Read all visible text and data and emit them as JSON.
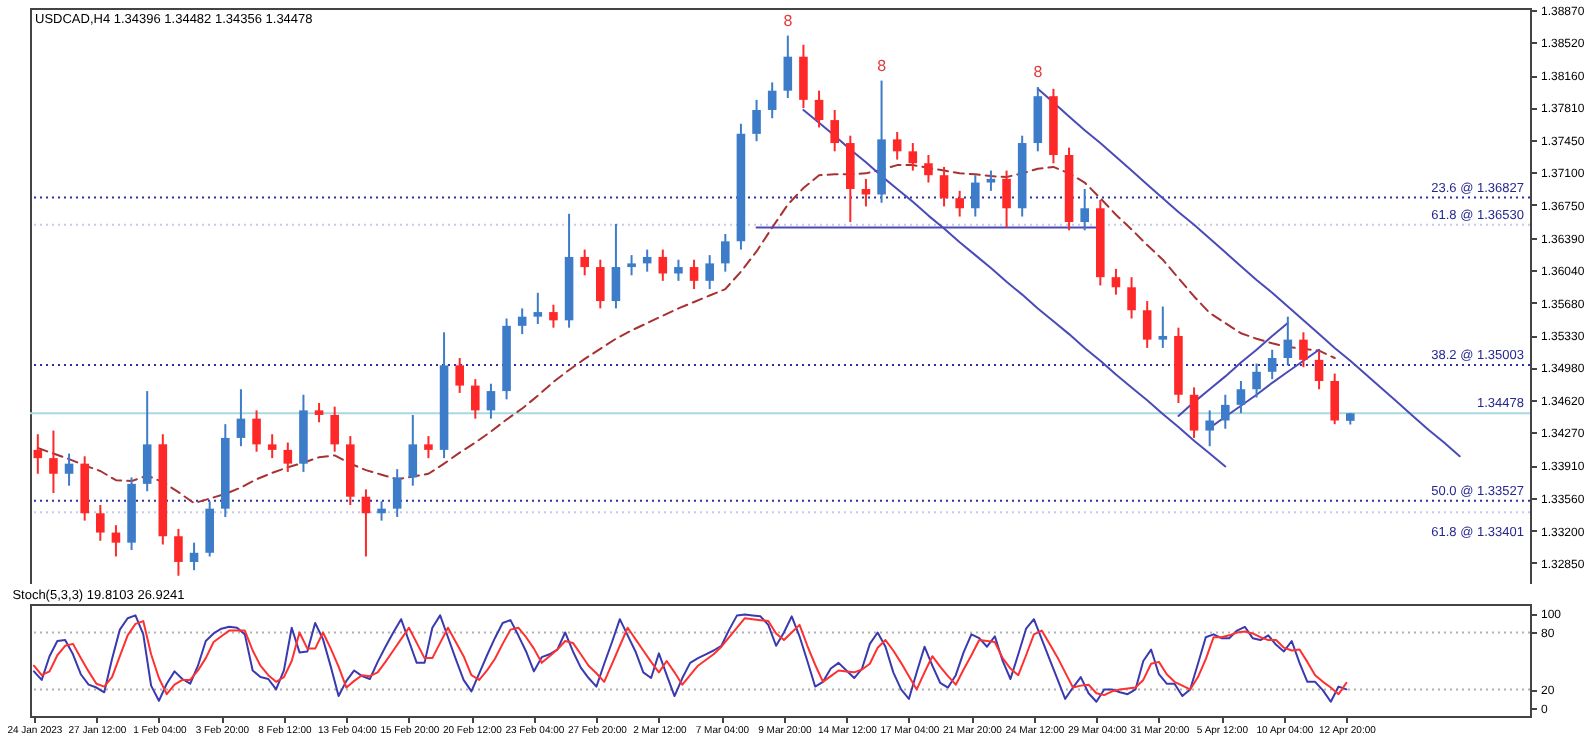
{
  "chart_data": [
    {
      "type": "candlestick",
      "title": "USDCAD,H4 1.34396 1.34482 1.34356 1.34478",
      "tick_labels": "y",
      "categories": [
        null,
        null,
        null,
        null,
        null,
        null,
        null,
        null,
        null,
        null,
        null,
        null,
        null,
        null,
        null,
        null,
        null,
        null,
        null,
        null,
        null,
        null,
        null,
        null,
        null,
        null,
        null,
        null,
        null,
        null,
        null,
        null,
        null,
        null,
        null,
        null,
        null,
        null,
        null,
        null,
        null,
        null,
        null,
        null,
        null,
        null,
        null,
        null,
        null,
        null,
        null,
        null,
        null,
        null,
        null,
        null,
        null,
        null,
        null,
        null,
        null,
        null,
        null,
        null,
        null,
        null,
        null,
        null,
        null,
        null,
        null,
        null,
        null,
        null,
        null,
        null,
        null,
        null,
        null,
        null,
        null,
        null,
        null,
        null,
        null,
        null,
        null,
        null,
        null,
        null,
        null,
        null,
        null,
        null,
        null,
        null
      ],
      "ylim": [
        1.3262,
        1.3889
      ],
      "yticks": [
        {
          "value": 1.3887,
          "label": "1.38870"
        },
        {
          "value": 1.3852,
          "label": "1.38520"
        },
        {
          "value": 1.3816,
          "label": "1.38160"
        },
        {
          "value": 1.3781,
          "label": "1.37810"
        },
        {
          "value": 1.3745,
          "label": "1.37450"
        },
        {
          "value": 1.371,
          "label": "1.37100"
        },
        {
          "value": 1.3675,
          "label": "1.36750"
        },
        {
          "value": 1.3639,
          "label": "1.36390"
        },
        {
          "value": 1.3604,
          "label": "1.36040"
        },
        {
          "value": 1.3568,
          "label": "1.35680"
        },
        {
          "value": 1.3533,
          "label": "1.35330"
        },
        {
          "value": 1.3498,
          "label": "1.34980"
        },
        {
          "value": 1.3462,
          "label": "1.34620"
        },
        {
          "value": 1.3427,
          "label": "1.34270"
        },
        {
          "value": 1.3391,
          "label": "1.33910"
        },
        {
          "value": 1.3356,
          "label": "1.33560"
        },
        {
          "value": 1.332,
          "label": "1.33200"
        },
        {
          "value": 1.3285,
          "label": "1.32850"
        }
      ],
      "ohlc": [
        [
          1.3408,
          1.3425,
          1.3382,
          1.3399
        ],
        [
          1.3399,
          1.3429,
          1.3361,
          1.3382
        ],
        [
          1.3382,
          1.3404,
          1.3369,
          1.3393
        ],
        [
          1.3393,
          1.3401,
          1.3331,
          1.3339
        ],
        [
          1.3339,
          1.3348,
          1.3309,
          1.3318
        ],
        [
          1.3318,
          1.3326,
          1.3292,
          1.3307
        ],
        [
          1.3307,
          1.3378,
          1.3299,
          1.3371
        ],
        [
          1.3371,
          1.3472,
          1.3363,
          1.3414
        ],
        [
          1.3414,
          1.3425,
          1.3305,
          1.3314
        ],
        [
          1.3314,
          1.3322,
          1.3271,
          1.3286
        ],
        [
          1.3286,
          1.3307,
          1.3277,
          1.3296
        ],
        [
          1.3296,
          1.3352,
          1.3292,
          1.3344
        ],
        [
          1.3344,
          1.3436,
          1.3335,
          1.3421
        ],
        [
          1.3421,
          1.3474,
          1.3412,
          1.3442
        ],
        [
          1.3442,
          1.3451,
          1.3406,
          1.3414
        ],
        [
          1.3414,
          1.3425,
          1.3399,
          1.3408
        ],
        [
          1.3408,
          1.3416,
          1.3384,
          1.3393
        ],
        [
          1.3393,
          1.3468,
          1.3384,
          1.3451
        ],
        [
          1.3451,
          1.3459,
          1.3438,
          1.3446
        ],
        [
          1.3446,
          1.3455,
          1.3406,
          1.3414
        ],
        [
          1.3414,
          1.3423,
          1.3348,
          1.3357
        ],
        [
          1.3357,
          1.3365,
          1.3292,
          1.3339
        ],
        [
          1.3339,
          1.3352,
          1.3331,
          1.3344
        ],
        [
          1.3344,
          1.3387,
          1.3335,
          1.3378
        ],
        [
          1.3378,
          1.3446,
          1.3369,
          1.3414
        ],
        [
          1.3414,
          1.3423,
          1.3399,
          1.3408
        ],
        [
          1.3408,
          1.3536,
          1.3399,
          1.35
        ],
        [
          1.35,
          1.3508,
          1.347,
          1.3478
        ],
        [
          1.3478,
          1.3485,
          1.3442,
          1.3451
        ],
        [
          1.3451,
          1.348,
          1.3442,
          1.3472
        ],
        [
          1.3472,
          1.3551,
          1.3463,
          1.3543
        ],
        [
          1.3543,
          1.3562,
          1.3534,
          1.3553
        ],
        [
          1.3553,
          1.3579,
          1.3545,
          1.3558
        ],
        [
          1.3558,
          1.3566,
          1.3541,
          1.3549
        ],
        [
          1.3549,
          1.3665,
          1.3541,
          1.3618
        ],
        [
          1.3618,
          1.3626,
          1.3598,
          1.3607
        ],
        [
          1.3607,
          1.3615,
          1.3562,
          1.357
        ],
        [
          1.357,
          1.3654,
          1.3562,
          1.3607
        ],
        [
          1.3607,
          1.362,
          1.3598,
          1.3611
        ],
        [
          1.3611,
          1.3626,
          1.3602,
          1.3618
        ],
        [
          1.3618,
          1.3626,
          1.3592,
          1.36
        ],
        [
          1.36,
          1.3615,
          1.3592,
          1.3607
        ],
        [
          1.3607,
          1.3615,
          1.3583,
          1.3592
        ],
        [
          1.3592,
          1.362,
          1.3583,
          1.3611
        ],
        [
          1.3611,
          1.3643,
          1.3602,
          1.3635
        ],
        [
          1.3635,
          1.3763,
          1.3626,
          1.3752
        ],
        [
          1.3752,
          1.3789,
          1.3744,
          1.3778
        ],
        [
          1.3778,
          1.3808,
          1.3769,
          1.3799
        ],
        [
          1.3799,
          1.3859,
          1.3791,
          1.3836
        ],
        [
          1.3836,
          1.3849,
          1.378,
          1.3789
        ],
        [
          1.3789,
          1.3799,
          1.3759,
          1.3767
        ],
        [
          1.3767,
          1.3778,
          1.3733,
          1.3742
        ],
        [
          1.3742,
          1.375,
          1.3656,
          1.3692
        ],
        [
          1.3692,
          1.3703,
          1.3673,
          1.3686
        ],
        [
          1.3686,
          1.381,
          1.3677,
          1.3746
        ],
        [
          1.3746,
          1.3754,
          1.3724,
          1.3733
        ],
        [
          1.3733,
          1.3742,
          1.3712,
          1.372
        ],
        [
          1.372,
          1.3729,
          1.3699,
          1.3707
        ],
        [
          1.3707,
          1.3716,
          1.3673,
          1.3682
        ],
        [
          1.3682,
          1.369,
          1.3662,
          1.3671
        ],
        [
          1.3671,
          1.3707,
          1.3662,
          1.3699
        ],
        [
          1.3699,
          1.3712,
          1.369,
          1.3703
        ],
        [
          1.3703,
          1.3712,
          1.365,
          1.3671
        ],
        [
          1.3671,
          1.375,
          1.3662,
          1.3742
        ],
        [
          1.3742,
          1.3803,
          1.3733,
          1.3793
        ],
        [
          1.3793,
          1.3801,
          1.372,
          1.3729
        ],
        [
          1.3729,
          1.3737,
          1.3647,
          1.3656
        ],
        [
          1.3656,
          1.3692,
          1.3647,
          1.3671
        ],
        [
          1.3671,
          1.368,
          1.3587,
          1.3596
        ],
        [
          1.3596,
          1.3605,
          1.3577,
          1.3585
        ],
        [
          1.3585,
          1.3596,
          1.3551,
          1.356
        ],
        [
          1.356,
          1.357,
          1.3519,
          1.3528
        ],
        [
          1.3528,
          1.3564,
          1.3519,
          1.3532
        ],
        [
          1.3532,
          1.3541,
          1.3459,
          1.3468
        ],
        [
          1.3468,
          1.3476,
          1.3421,
          1.3429
        ],
        [
          1.3429,
          1.3451,
          1.3412,
          1.344
        ],
        [
          1.344,
          1.3468,
          1.3431,
          1.3457
        ],
        [
          1.3457,
          1.3483,
          1.3448,
          1.3474
        ],
        [
          1.3474,
          1.3502,
          1.3465,
          1.3493
        ],
        [
          1.3493,
          1.3517,
          1.3485,
          1.3508
        ],
        [
          1.3508,
          1.3553,
          1.35,
          1.3528
        ],
        [
          1.3528,
          1.3536,
          1.3498,
          1.3506
        ],
        [
          1.3506,
          1.3515,
          1.3474,
          1.3483
        ],
        [
          1.3483,
          1.3491,
          1.3436,
          1.344
        ],
        [
          1.34396,
          1.34482,
          1.34356,
          1.34478
        ],
        null,
        null,
        null,
        null,
        null,
        null,
        null,
        null,
        null,
        null,
        null
      ],
      "colors": [
        "#ff2828",
        "#ff2828",
        "#3d7cc9",
        "#ff2828",
        "#ff2828",
        "#ff2828",
        "#3d7cc9",
        "#3d7cc9",
        "#ff2828",
        "#ff2828",
        "#3d7cc9",
        "#3d7cc9",
        "#3d7cc9",
        "#3d7cc9",
        "#ff2828",
        "#ff2828",
        "#ff2828",
        "#3d7cc9",
        "#ff2828",
        "#ff2828",
        "#ff2828",
        "#ff2828",
        "#3d7cc9",
        "#3d7cc9",
        "#3d7cc9",
        "#ff2828",
        "#3d7cc9",
        "#ff2828",
        "#ff2828",
        "#3d7cc9",
        "#3d7cc9",
        "#3d7cc9",
        "#3d7cc9",
        "#ff2828",
        "#3d7cc9",
        "#ff2828",
        "#ff2828",
        "#3d7cc9",
        "#3d7cc9",
        "#3d7cc9",
        "#ff2828",
        "#3d7cc9",
        "#ff2828",
        "#3d7cc9",
        "#3d7cc9",
        "#3d7cc9",
        "#3d7cc9",
        "#3d7cc9",
        "#3d7cc9",
        "#ff2828",
        "#ff2828",
        "#ff2828",
        "#ff2828",
        "#ff2828",
        "#3d7cc9",
        "#ff2828",
        "#ff2828",
        "#ff2828",
        "#ff2828",
        "#ff2828",
        "#3d7cc9",
        "#3d7cc9",
        "#ff2828",
        "#3d7cc9",
        "#3d7cc9",
        "#ff2828",
        "#ff2828",
        "#3d7cc9",
        "#ff2828",
        "#ff2828",
        "#ff2828",
        "#ff2828",
        "#3d7cc9",
        "#ff2828",
        "#ff2828",
        "#3d7cc9",
        "#3d7cc9",
        "#3d7cc9",
        "#3d7cc9",
        "#3d7cc9",
        "#3d7cc9",
        "#ff2828",
        "#ff2828",
        "#ff2828",
        "#3d7cc9",
        null,
        null,
        null,
        null,
        null,
        null,
        null,
        null,
        null,
        null,
        null
      ],
      "series": [
        {
          "type": "line",
          "color": "#a83232",
          "line_style": "dashed",
          "values": [
            1.341,
            1.3404,
            1.3398,
            1.3391,
            1.3385,
            1.3375,
            1.3374,
            1.338,
            1.3373,
            1.3362,
            1.335,
            1.3355,
            1.336,
            1.3367,
            1.3376,
            1.3383,
            1.3389,
            1.3394,
            1.34,
            1.3402,
            1.3393,
            1.3386,
            1.3381,
            1.3376,
            1.3379,
            1.3382,
            1.3393,
            1.3405,
            1.3416,
            1.3428,
            1.3441,
            1.3453,
            1.3467,
            1.3482,
            1.3495,
            1.3507,
            1.3518,
            1.3529,
            1.3538,
            1.3546,
            1.3554,
            1.3562,
            1.3569,
            1.3576,
            1.3583,
            1.3602,
            1.3624,
            1.365,
            1.3675,
            1.3693,
            1.3707,
            1.3708,
            1.3708,
            1.3709,
            1.3713,
            1.3718,
            1.3718,
            1.3715,
            1.3712,
            1.3709,
            1.3708,
            1.3706,
            1.3705,
            1.3709,
            1.3714,
            1.3716,
            1.3709,
            1.3699,
            1.3682,
            1.3664,
            1.3648,
            1.3631,
            1.3615,
            1.3595,
            1.3575,
            1.3557,
            1.3546,
            1.3535,
            1.3529,
            1.3524,
            1.352,
            1.3518,
            1.3516,
            1.3508,
            null,
            null,
            null,
            null,
            null,
            null,
            null,
            null,
            null,
            null,
            null,
            null
          ]
        },
        {
          "type": "line",
          "color": "#4a4ab8",
          "line_style": "solid",
          "values": [
            null,
            null,
            null,
            null,
            null,
            null,
            null,
            null,
            null,
            null,
            null,
            null,
            null,
            null,
            null,
            null,
            null,
            null,
            null,
            null,
            null,
            null,
            null,
            null,
            null,
            null,
            null,
            null,
            null,
            null,
            null,
            null,
            null,
            null,
            null,
            null,
            null,
            null,
            null,
            null,
            null,
            null,
            null,
            null,
            null,
            null,
            null,
            null,
            null,
            1.3778,
            1.3764,
            1.375,
            1.3735,
            1.3721,
            1.3706,
            1.3692,
            1.3678,
            1.3663,
            1.3649,
            1.3634,
            1.362,
            1.3606,
            1.3591,
            1.3577,
            1.3562,
            1.3548,
            1.3534,
            1.3519,
            1.3505,
            1.349,
            1.3476,
            1.3462,
            1.3447,
            1.3433,
            1.3418,
            1.3404,
            1.339,
            null,
            null,
            null,
            null,
            null,
            null,
            null,
            null,
            null,
            null,
            null,
            null,
            null,
            null,
            null,
            null,
            null,
            null,
            null
          ]
        },
        {
          "type": "line",
          "color": "#4a4ab8",
          "line_style": "solid",
          "values": [
            null,
            null,
            null,
            null,
            null,
            null,
            null,
            null,
            null,
            null,
            null,
            null,
            null,
            null,
            null,
            null,
            null,
            null,
            null,
            null,
            null,
            null,
            null,
            null,
            null,
            null,
            null,
            null,
            null,
            null,
            null,
            null,
            null,
            null,
            null,
            null,
            null,
            null,
            null,
            null,
            null,
            null,
            null,
            null,
            null,
            null,
            null,
            null,
            null,
            null,
            null,
            null,
            null,
            null,
            null,
            null,
            null,
            null,
            null,
            null,
            null,
            null,
            null,
            null,
            1.3801,
            1.3786,
            1.3771,
            1.3756,
            1.3742,
            1.3727,
            1.3712,
            1.3697,
            1.3682,
            1.3667,
            1.3653,
            1.3638,
            1.3623,
            1.3608,
            1.3593,
            1.3579,
            1.3564,
            1.3549,
            1.3534,
            1.3519,
            1.3505,
            1.349,
            1.3475,
            1.346,
            1.3445,
            1.343,
            1.3416,
            1.3401,
            null,
            null,
            null,
            null
          ]
        },
        {
          "type": "line",
          "color": "#4a4ab8",
          "line_style": "solid",
          "values": [
            null,
            null,
            null,
            null,
            null,
            null,
            null,
            null,
            null,
            null,
            null,
            null,
            null,
            null,
            null,
            null,
            null,
            null,
            null,
            null,
            null,
            null,
            null,
            null,
            null,
            null,
            null,
            null,
            null,
            null,
            null,
            null,
            null,
            null,
            null,
            null,
            null,
            null,
            null,
            null,
            null,
            null,
            null,
            null,
            null,
            null,
            1.365,
            1.365,
            1.365,
            1.365,
            1.365,
            1.365,
            1.365,
            1.365,
            1.365,
            1.365,
            1.365,
            1.365,
            1.365,
            1.365,
            1.365,
            1.365,
            1.365,
            1.365,
            1.365,
            1.365,
            1.365,
            1.365,
            1.365,
            null,
            null,
            null,
            null,
            null,
            null,
            null,
            null,
            null,
            null,
            null,
            null,
            null,
            null,
            null,
            null,
            null,
            null,
            null,
            null,
            null,
            null,
            null,
            null,
            null,
            null,
            null
          ]
        },
        {
          "type": "line",
          "color": "#4a4ab8",
          "line_style": "solid",
          "values": [
            null,
            null,
            null,
            null,
            null,
            null,
            null,
            null,
            null,
            null,
            null,
            null,
            null,
            null,
            null,
            null,
            null,
            null,
            null,
            null,
            null,
            null,
            null,
            null,
            null,
            null,
            null,
            null,
            null,
            null,
            null,
            null,
            null,
            null,
            null,
            null,
            null,
            null,
            null,
            null,
            null,
            null,
            null,
            null,
            null,
            null,
            null,
            null,
            null,
            null,
            null,
            null,
            null,
            null,
            null,
            null,
            null,
            null,
            null,
            null,
            null,
            null,
            null,
            null,
            null,
            null,
            null,
            null,
            null,
            null,
            null,
            null,
            null,
            null,
            null,
            1.3432,
            1.3444,
            1.3456,
            1.3468,
            1.3481,
            1.3493,
            1.3505,
            1.3517,
            null,
            null,
            null,
            null,
            null,
            null,
            null,
            null,
            null,
            null,
            null,
            null,
            null
          ]
        },
        {
          "type": "line",
          "color": "#4a4ab8",
          "line_style": "solid",
          "values": [
            null,
            null,
            null,
            null,
            null,
            null,
            null,
            null,
            null,
            null,
            null,
            null,
            null,
            null,
            null,
            null,
            null,
            null,
            null,
            null,
            null,
            null,
            null,
            null,
            null,
            null,
            null,
            null,
            null,
            null,
            null,
            null,
            null,
            null,
            null,
            null,
            null,
            null,
            null,
            null,
            null,
            null,
            null,
            null,
            null,
            null,
            null,
            null,
            null,
            null,
            null,
            null,
            null,
            null,
            null,
            null,
            null,
            null,
            null,
            null,
            null,
            null,
            null,
            null,
            null,
            null,
            null,
            null,
            null,
            null,
            null,
            null,
            null,
            1.3445,
            1.346,
            1.3474,
            1.3488,
            1.3503,
            1.3517,
            1.3532,
            1.3546,
            null,
            null,
            null,
            null,
            null,
            null,
            null,
            null,
            null,
            null,
            null,
            null,
            null,
            null,
            null
          ]
        }
      ],
      "ref_lines": [
        {
          "axis": "y",
          "value": 1.36827,
          "label": "23.6 @ 1.36827",
          "color": "#3030a0",
          "line_style": "dotted"
        },
        {
          "axis": "y",
          "value": 1.3653,
          "label": "61.8 @ 1.36530",
          "color": "#c8c8e8",
          "line_style": "dotted"
        },
        {
          "axis": "y",
          "value": 1.35003,
          "label": "38.2 @ 1.35003",
          "color": "#3030a0",
          "line_style": "dotted"
        },
        {
          "axis": "y",
          "value": 1.34478,
          "label": "1.34478",
          "color": "#a8d8e0",
          "line_style": "solid"
        },
        {
          "axis": "y",
          "value": 1.33527,
          "label": "50.0 @ 1.33527",
          "color": "#3030a0",
          "line_style": "dotted"
        },
        {
          "axis": "y",
          "value": 1.33401,
          "label": "61.8 @ 1.33401",
          "color": "#c8c8e8",
          "line_style": "dotted"
        }
      ],
      "annotations": [
        {
          "text": "8",
          "y": 1.3859
        },
        {
          "text": "8",
          "y": 1.381
        },
        {
          "text": "8",
          "y": 1.3803
        }
      ]
    },
    {
      "type": "line",
      "title": "Stoch(5,3,3) 19.8103 26.9241",
      "categories": [
        "24 Jan 2023",
        null,
        null,
        null,
        null,
        null,
        null,
        null,
        "27 Jan 12:00",
        null,
        null,
        null,
        null,
        null,
        null,
        null,
        "1 Feb 04:00",
        null,
        null,
        null,
        null,
        null,
        null,
        null,
        "3 Feb 20:00",
        null,
        null,
        null,
        null,
        null,
        null,
        null,
        "8 Feb 12:00",
        null,
        null,
        null,
        null,
        null,
        null,
        null,
        "13 Feb 04:00",
        null,
        null,
        null,
        null,
        null,
        null,
        null,
        "15 Feb 20:00",
        null,
        null,
        null,
        null,
        null,
        null,
        null,
        "20 Feb 12:00",
        null,
        null,
        null,
        null,
        null,
        null,
        null,
        "23 Feb 04:00",
        null,
        null,
        null,
        null,
        null,
        null,
        null,
        "27 Feb 20:00",
        null,
        null,
        null,
        null,
        null,
        null,
        null,
        "2 Mar 12:00",
        null,
        null,
        null,
        null,
        null,
        null,
        null,
        "7 Mar 04:00",
        null,
        null,
        null,
        null,
        null,
        null,
        null,
        "9 Mar 20:00",
        null,
        null,
        null,
        null,
        null,
        null,
        null,
        "14 Mar 12:00",
        null,
        null,
        null,
        null,
        null,
        null,
        null,
        "17 Mar 04:00",
        null,
        null,
        null,
        null,
        null,
        null,
        null,
        "21 Mar 20:00",
        null,
        null,
        null,
        null,
        null,
        null,
        null,
        "24 Mar 12:00",
        null,
        null,
        null,
        null,
        null,
        null,
        null,
        "29 Mar 04:00",
        null,
        null,
        null,
        null,
        null,
        null,
        null,
        "31 Mar 20:00",
        null,
        null,
        null,
        null,
        null,
        null,
        null,
        "5 Apr 12:00",
        null,
        null,
        null,
        null,
        null,
        null,
        null,
        "10 Apr 04:00",
        null,
        null,
        null,
        null,
        null,
        null,
        null,
        "12 Apr 20:00",
        null,
        null,
        null,
        null,
        null,
        null,
        null,
        null,
        null,
        null,
        null,
        null,
        null,
        null,
        null,
        null,
        null,
        null,
        null,
        null,
        null,
        null,
        null
      ],
      "ylim": [
        -8,
        110
      ],
      "yticks": [
        0,
        20,
        80,
        100
      ],
      "series": [
        {
          "type": "line",
          "color": "#3a3ab0",
          "values": [
            39,
            30,
            55,
            71,
            72,
            57,
            36,
            25,
            22,
            17,
            52,
            83,
            95,
            98,
            78,
            24,
            8,
            26,
            39,
            31,
            26,
            45,
            71,
            79,
            84,
            86,
            85,
            78,
            40,
            33,
            31,
            20,
            40,
            85,
            59,
            60,
            90,
            73,
            44,
            13,
            29,
            40,
            34,
            31,
            49,
            65,
            80,
            94,
            71,
            48,
            48,
            85,
            98,
            75,
            52,
            30,
            18,
            37,
            56,
            74,
            90,
            93,
            77,
            60,
            39,
            54,
            57,
            62,
            80,
            60,
            43,
            32,
            23,
            47,
            70,
            94,
            77,
            60,
            38,
            32,
            58,
            35,
            13,
            32,
            48,
            53,
            57,
            61,
            66,
            83,
            98,
            99,
            98,
            97,
            88,
            66,
            80,
            97,
            76,
            50,
            23,
            28,
            42,
            48,
            40,
            32,
            42,
            68,
            80,
            65,
            38,
            20,
            10,
            38,
            65,
            45,
            27,
            22,
            35,
            59,
            78,
            74,
            65,
            76,
            50,
            31,
            57,
            84,
            94,
            73,
            52,
            31,
            10,
            22,
            33,
            16,
            7,
            20,
            20,
            17,
            15,
            20,
            50,
            62,
            36,
            26,
            26,
            13,
            20,
            47,
            75,
            78,
            74,
            74,
            82,
            86,
            74,
            72,
            77,
            67,
            60,
            71,
            48,
            28,
            28,
            19,
            7,
            23,
            20,
            null,
            null,
            null,
            null,
            null,
            null,
            null,
            null,
            null,
            null,
            null,
            null,
            null,
            null,
            null,
            null,
            null,
            null,
            null,
            null,
            null,
            null,
            null
          ]
        },
        {
          "type": "line",
          "color": "#ff3030",
          "values": [
            45,
            35,
            39,
            56,
            66,
            68,
            53,
            39,
            26,
            23,
            33,
            55,
            77,
            89,
            92,
            57,
            32,
            15,
            25,
            30,
            30,
            40,
            53,
            70,
            76,
            82,
            82,
            82,
            61,
            45,
            35,
            28,
            33,
            50,
            80,
            63,
            63,
            80,
            63,
            44,
            22,
            29,
            35,
            34,
            38,
            49,
            61,
            73,
            85,
            69,
            53,
            53,
            69,
            85,
            70,
            55,
            35,
            30,
            40,
            52,
            68,
            83,
            85,
            75,
            63,
            48,
            55,
            62,
            71,
            69,
            57,
            45,
            37,
            28,
            47,
            66,
            85,
            73,
            61,
            49,
            38,
            50,
            38,
            25,
            35,
            45,
            51,
            57,
            65,
            75,
            85,
            95,
            94,
            93,
            92,
            79,
            72,
            80,
            88,
            66,
            46,
            28,
            34,
            40,
            39,
            38,
            41,
            47,
            64,
            72,
            61,
            48,
            34,
            20,
            38,
            55,
            44,
            34,
            25,
            41,
            56,
            72,
            71,
            70,
            53,
            42,
            35,
            56,
            78,
            82,
            68,
            54,
            38,
            22,
            24,
            25,
            16,
            14,
            18,
            20,
            21,
            22,
            30,
            47,
            49,
            36,
            28,
            24,
            20,
            33,
            52,
            75,
            75,
            77,
            80,
            81,
            79,
            75,
            72,
            72,
            64,
            61,
            62,
            49,
            35,
            28,
            22,
            15,
            27,
            null,
            null,
            null,
            null,
            null,
            null,
            null,
            null,
            null,
            null,
            null,
            null,
            null,
            null,
            null,
            null,
            null,
            null,
            null,
            null,
            null,
            null,
            null
          ]
        }
      ],
      "ref_lines": [
        {
          "axis": "y",
          "value": 80,
          "color": "#b0b0b0",
          "line_style": "dotted"
        },
        {
          "axis": "y",
          "value": 20,
          "color": "#b0b0b0",
          "line_style": "dotted"
        }
      ]
    }
  ]
}
